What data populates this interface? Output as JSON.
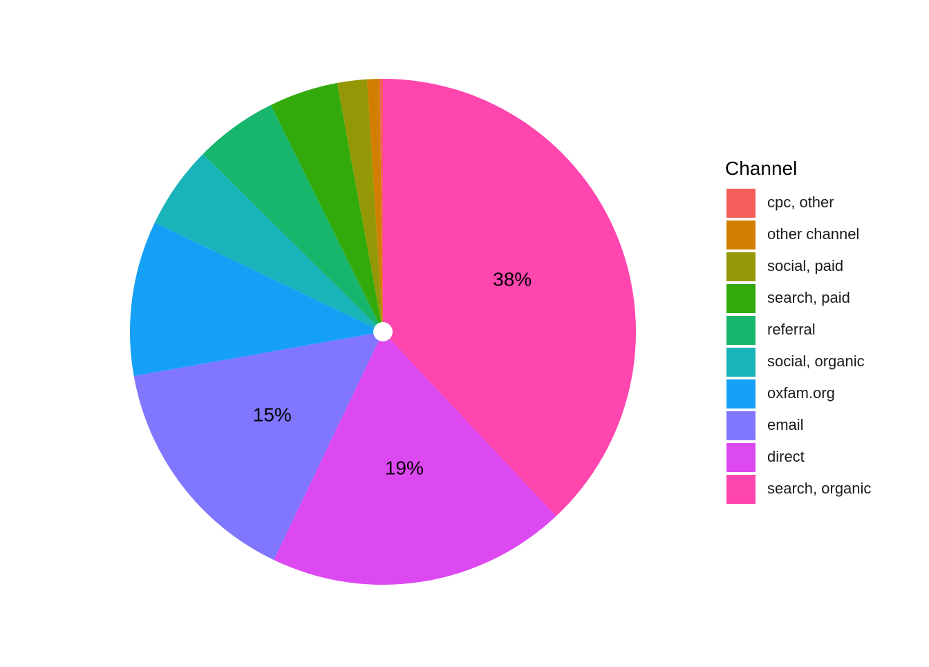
{
  "chart_data": {
    "type": "pie",
    "title": "",
    "legend": {
      "title": "Channel",
      "position": "right"
    },
    "slices": [
      {
        "label": "search, organic",
        "percent": 38.0,
        "color": "#FF45AE",
        "data_label": "38%"
      },
      {
        "label": "direct",
        "percent": 19.1,
        "color": "#DD49F1",
        "data_label": "19%"
      },
      {
        "label": "email",
        "percent": 15.1,
        "color": "#8177FF",
        "data_label": "15%"
      },
      {
        "label": "oxfam.org",
        "percent": 9.9,
        "color": "#16A0F5",
        "data_label": ""
      },
      {
        "label": "social, organic",
        "percent": 5.3,
        "color": "#19B3BA",
        "data_label": ""
      },
      {
        "label": "referral",
        "percent": 5.3,
        "color": "#18B56C",
        "data_label": ""
      },
      {
        "label": "search, paid",
        "percent": 4.4,
        "color": "#32AA0C",
        "data_label": ""
      },
      {
        "label": "social, paid",
        "percent": 1.9,
        "color": "#949807",
        "data_label": ""
      },
      {
        "label": "other channel",
        "percent": 0.8,
        "color": "#D27E02",
        "data_label": ""
      },
      {
        "label": "cpc, other",
        "percent": 0.2,
        "color": "#F45F5C",
        "data_label": ""
      }
    ],
    "legend_order": [
      "cpc, other",
      "other channel",
      "social, paid",
      "search, paid",
      "referral",
      "social, organic",
      "oxfam.org",
      "email",
      "direct",
      "search, organic"
    ]
  }
}
